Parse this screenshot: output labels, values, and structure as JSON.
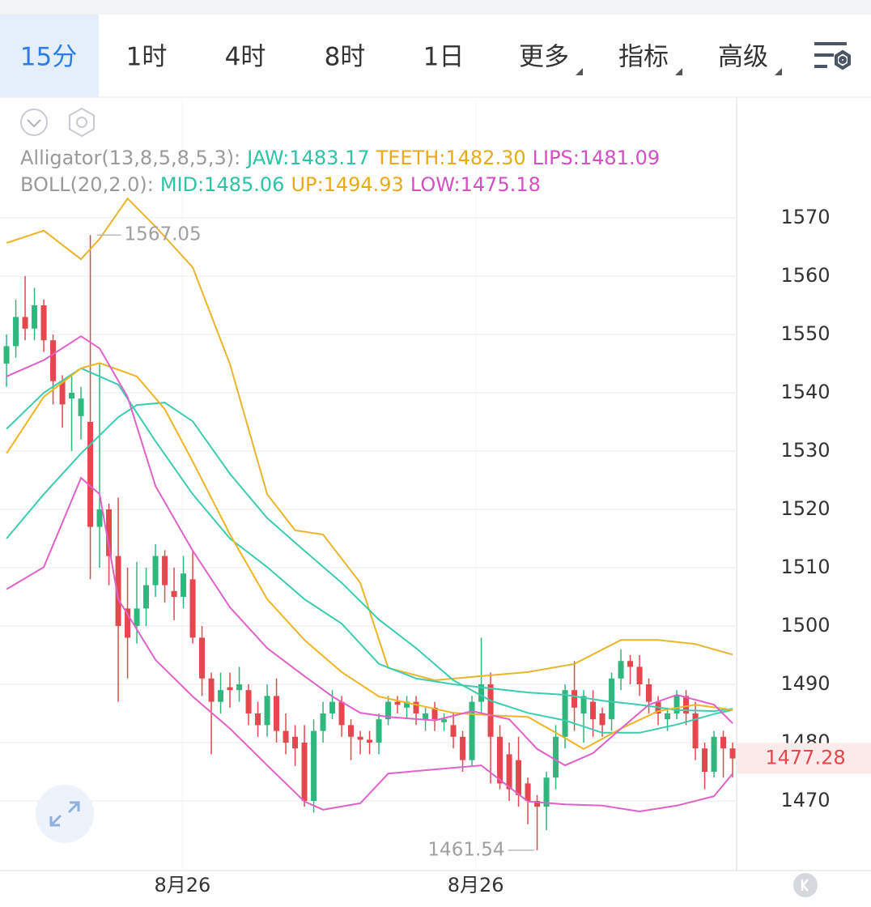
{
  "tabs": [
    {
      "label": "15分",
      "menu": false
    },
    {
      "label": "1时",
      "menu": false
    },
    {
      "label": "4时",
      "menu": false
    },
    {
      "label": "8时",
      "menu": false
    },
    {
      "label": "1日",
      "menu": false
    },
    {
      "label": "更多",
      "menu": true
    },
    {
      "label": "指标",
      "menu": true
    },
    {
      "label": "高级",
      "menu": true
    }
  ],
  "active_tab": 0,
  "chart_data": {
    "type": "candlestick",
    "legends": [
      {
        "title": "Alligator(13,8,5,8,5,3):",
        "items": [
          {
            "text": "JAW:1483.17",
            "color": "#2cc3a7"
          },
          {
            "text": "TEETH:1482.30",
            "color": "#e9aa18"
          },
          {
            "text": "LIPS:1481.09",
            "color": "#d24fc4"
          }
        ]
      },
      {
        "title": "BOLL(20,2.0):",
        "items": [
          {
            "text": "MID:1485.06",
            "color": "#2cc3a7"
          },
          {
            "text": "UP:1494.93",
            "color": "#e9aa18"
          },
          {
            "text": "LOW:1475.18",
            "color": "#d24fc4"
          }
        ]
      }
    ],
    "open": [
      1545,
      1548,
      1553,
      1551,
      1555,
      1549,
      1542,
      1539,
      1536,
      1535,
      1517,
      1520,
      1512,
      1503,
      1500,
      1503,
      1507,
      1512,
      1506,
      1505,
      1508,
      1498,
      1491,
      1487,
      1489.5,
      1489,
      1489,
      1485,
      1483,
      1488,
      1482,
      1481,
      1480,
      1470,
      1482,
      1485,
      1487,
      1483,
      1481,
      1480.5,
      1480,
      1484,
      1487,
      1486,
      1487,
      1484,
      1486,
      1483.5,
      1483,
      1481,
      1477,
      1487,
      1490,
      1481,
      1478,
      1477,
      1473,
      1470,
      1469,
      1474,
      1481,
      1489,
      1485,
      1487,
      1485,
      1484,
      1491,
      1494,
      1493,
      1490,
      1487,
      1484,
      1485,
      1488,
      1485,
      1479,
      1475,
      1481,
      1479
    ],
    "high": [
      1550,
      1556,
      1560,
      1558,
      1556,
      1550,
      1543,
      1543,
      1541,
      1567.05,
      1545,
      1521,
      1522,
      1510,
      1511,
      1510,
      1514,
      1513,
      1510,
      1512,
      1513,
      1500,
      1492,
      1492,
      1492,
      1493,
      1490,
      1487,
      1490,
      1491,
      1485,
      1483,
      1483,
      1484,
      1487,
      1489,
      1488,
      1484,
      1482,
      1482,
      1485,
      1488,
      1488,
      1488,
      1488,
      1486,
      1487,
      1485,
      1485,
      1482,
      1488,
      1498,
      1492,
      1483,
      1480,
      1481,
      1474,
      1471,
      1475,
      1483,
      1490,
      1494,
      1489,
      1489,
      1486,
      1492,
      1496,
      1495,
      1495,
      1491,
      1488,
      1486,
      1489,
      1489,
      1487,
      1480,
      1482,
      1482,
      1480
    ],
    "low": [
      1541,
      1546,
      1549,
      1549,
      1547,
      1538,
      1534,
      1530,
      1532,
      1508,
      1510,
      1507,
      1487,
      1491,
      1497,
      1500,
      1505,
      1504,
      1501,
      1503,
      1497,
      1488,
      1478,
      1485,
      1486,
      1487,
      1483,
      1481,
      1481,
      1480,
      1478,
      1476,
      1469,
      1468,
      1480,
      1484,
      1481,
      1477,
      1478,
      1478,
      1478,
      1483,
      1485,
      1484,
      1483,
      1482,
      1482,
      1482,
      1479,
      1475,
      1476,
      1485,
      1473,
      1472,
      1470,
      1469,
      1466,
      1461.54,
      1465,
      1472,
      1479,
      1482,
      1480,
      1481,
      1481,
      1482,
      1489,
      1490,
      1488,
      1485,
      1483,
      1482,
      1484,
      1483,
      1477,
      1472,
      1474,
      1474,
      1474
    ],
    "close": [
      1548,
      1553,
      1551,
      1555,
      1549,
      1542,
      1538,
      1540,
      1539,
      1517,
      1520,
      1512,
      1500,
      1498,
      1503,
      1507,
      1512,
      1507,
      1505,
      1509,
      1498,
      1491,
      1487,
      1489,
      1489,
      1490,
      1485,
      1483,
      1488,
      1482,
      1480,
      1479,
      1470,
      1482,
      1485,
      1487,
      1483,
      1481,
      1480.5,
      1480,
      1484,
      1487,
      1486.5,
      1487,
      1485,
      1485,
      1484,
      1484,
      1481,
      1477,
      1487,
      1490,
      1481,
      1473,
      1472,
      1471,
      1470,
      1469,
      1474,
      1481,
      1489,
      1486,
      1488,
      1484,
      1483,
      1491,
      1494,
      1493,
      1490,
      1487,
      1485,
      1485,
      1488,
      1485,
      1479,
      1475,
      1481,
      1479,
      1477.28
    ],
    "up_color": "#2fb77e",
    "down_color": "#e5474f",
    "lines": [
      {
        "color": "#e9b52a",
        "x": [
          0,
          4,
          8,
          10,
          13,
          16,
          20,
          24,
          28,
          31,
          34,
          38,
          41,
          46,
          51,
          56,
          61,
          66,
          70,
          74,
          78
        ],
        "values": [
          1565.7,
          1567.8,
          1562.9,
          1566.4,
          1573.3,
          1568.5,
          1561.5,
          1544.9,
          1522.6,
          1516.4,
          1515.7,
          1507.4,
          1492.8,
          1490.7,
          1491.4,
          1492.1,
          1493.5,
          1497.6,
          1497.6,
          1496.9,
          1495.1
        ]
      },
      {
        "color": "#3cccb0",
        "x": [
          0,
          4,
          8,
          12,
          16,
          20,
          24,
          28,
          32,
          36,
          40,
          44,
          48,
          52,
          56,
          60,
          64,
          68,
          72,
          76,
          78
        ],
        "values": [
          1533.8,
          1540.0,
          1544.2,
          1541.4,
          1531.7,
          1522.6,
          1515.0,
          1510.1,
          1504.6,
          1500.4,
          1493.5,
          1491.0,
          1490.0,
          1489.3,
          1488.6,
          1488.2,
          1487.2,
          1486.5,
          1485.6,
          1485.4,
          1485.8
        ]
      },
      {
        "color": "#e062c8",
        "x": [
          0,
          4,
          8,
          10,
          12,
          16,
          20,
          24,
          28,
          32,
          34,
          38,
          41,
          46,
          51,
          56,
          60,
          64,
          68,
          72,
          76,
          78
        ],
        "values": [
          1506.3,
          1510.1,
          1525.4,
          1522.6,
          1504.6,
          1494.2,
          1487.9,
          1482.4,
          1476.1,
          1469.9,
          1468.5,
          1469.6,
          1474.7,
          1475.4,
          1476.1,
          1469.9,
          1469.4,
          1469.2,
          1468.2,
          1469.2,
          1470.8,
          1474.7
        ]
      },
      {
        "color": "#3cccb0",
        "x": [
          0,
          4,
          8,
          12,
          14,
          17,
          20,
          24,
          28,
          32,
          36,
          40,
          44,
          48,
          52,
          56,
          60,
          64,
          68,
          72,
          76,
          78
        ],
        "values": [
          1515.0,
          1522.6,
          1529.6,
          1535.8,
          1537.9,
          1538.3,
          1535.1,
          1526.1,
          1518.5,
          1512.9,
          1507.4,
          1501.1,
          1496.2,
          1490.7,
          1487.2,
          1485.1,
          1483.8,
          1481.7,
          1481.7,
          1483.1,
          1484.9,
          1485.6
        ]
      },
      {
        "color": "#efb524",
        "x": [
          0,
          4,
          8,
          10,
          14,
          17,
          20,
          24,
          28,
          32,
          36,
          40,
          44,
          48,
          52,
          56,
          59,
          62,
          66,
          70,
          74,
          78
        ],
        "values": [
          1529.6,
          1539.3,
          1544.2,
          1545.1,
          1542.8,
          1537.2,
          1528.2,
          1515.7,
          1504.6,
          1497.6,
          1492.1,
          1487.9,
          1486.5,
          1485.1,
          1484.7,
          1484.4,
          1481.7,
          1478.9,
          1482.4,
          1485.4,
          1486.5,
          1485.6
        ]
      },
      {
        "color": "#e062c8",
        "x": [
          0,
          4,
          8,
          10,
          13,
          16,
          20,
          24,
          28,
          32,
          35,
          38,
          41,
          46,
          50,
          54,
          57,
          60,
          63,
          66,
          69,
          72,
          76,
          78
        ],
        "values": [
          1542.8,
          1545.6,
          1549.7,
          1547.6,
          1539.3,
          1524.0,
          1512.9,
          1503.2,
          1496.2,
          1491.4,
          1487.9,
          1485.1,
          1484.4,
          1483.8,
          1485.4,
          1484.0,
          1478.9,
          1476.1,
          1478.2,
          1482.4,
          1486.5,
          1488.2,
          1486.5,
          1483.3
        ]
      }
    ],
    "xlim": [
      -0.7,
      78.43
    ],
    "xticks": [
      {
        "value": 18.9,
        "label": "8月26"
      },
      {
        "value": 50.4,
        "label": "8月26"
      }
    ],
    "ylim": [
      1458.75,
      1590
    ],
    "yticks": [
      1470,
      1480,
      1490,
      1500,
      1510,
      1520,
      1530,
      1540,
      1550,
      1560,
      1570
    ],
    "grid": true,
    "high_label": 1567.05,
    "low_label": 1461.54,
    "last_price": 1477.28
  }
}
